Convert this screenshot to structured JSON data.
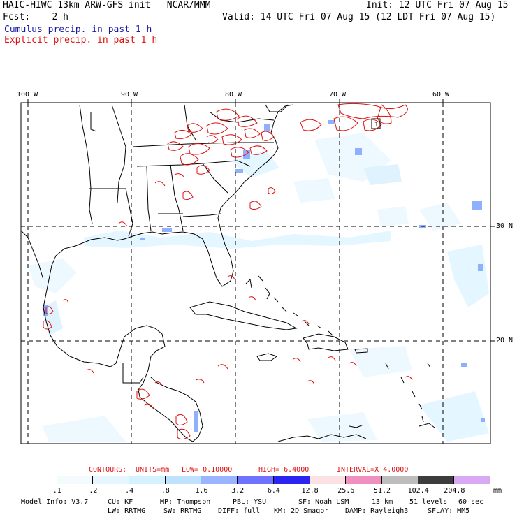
{
  "header": {
    "title_left": "HAIC-HIWC 13km ARW-GFS init   NCAR/MMM",
    "forecast": "Fcst:    2 h",
    "init": "Init: 12 UTC Fri 07 Aug 15",
    "valid": "Valid: 14 UTC Fri 07 Aug 15 (12 LDT Fri 07 Aug 15)",
    "legend_cumulus": "Cumulus precip. in past 1 h",
    "legend_explicit": "Explicit precip. in past 1 h"
  },
  "map": {
    "lon_labels": [
      "100 W",
      "90 W",
      "80 W",
      "70 W",
      "60 W"
    ],
    "lat_labels": [
      "30 N",
      "20 N"
    ]
  },
  "contours": {
    "label": "CONTOURS:",
    "units": "UNITS=mm",
    "low": "LOW= 0.10000",
    "high": "HIGH= 6.4000",
    "interval": "INTERVAL=X 4.0000"
  },
  "colorbar": {
    "unit": "mm",
    "ticks": [
      ".1",
      ".2",
      ".4",
      ".8",
      "1.6",
      "3.2",
      "6.4",
      "12.8",
      "25.6",
      "51.2",
      "102.4",
      "204.8"
    ],
    "colors": [
      "#ffffff",
      "#f4fbff",
      "#e6f6ff",
      "#d4f2ff",
      "#bfe3ff",
      "#9ab4ff",
      "#6f73ff",
      "#2b24f0",
      "#fbe0e4",
      "#f090c0",
      "#bdbdbd",
      "#3c3c3c",
      "#d9a8f5"
    ]
  },
  "footer": {
    "model_info": "Model Info: V3.7",
    "cu": "CU: KF",
    "mp": "MP: Thompson",
    "pbl": "PBL: YSU",
    "sf": "SF: Noah LSM",
    "res": "13 km",
    "levels": "51 levels",
    "dt": "60 sec",
    "lw": "LW: RRTMG",
    "sw": "SW: RRTMG",
    "diff": "DIFF: full",
    "km": "KM: 2D Smagor",
    "damp": "DAMP: Rayleigh3",
    "sflay": "SFLAY: MM5"
  }
}
